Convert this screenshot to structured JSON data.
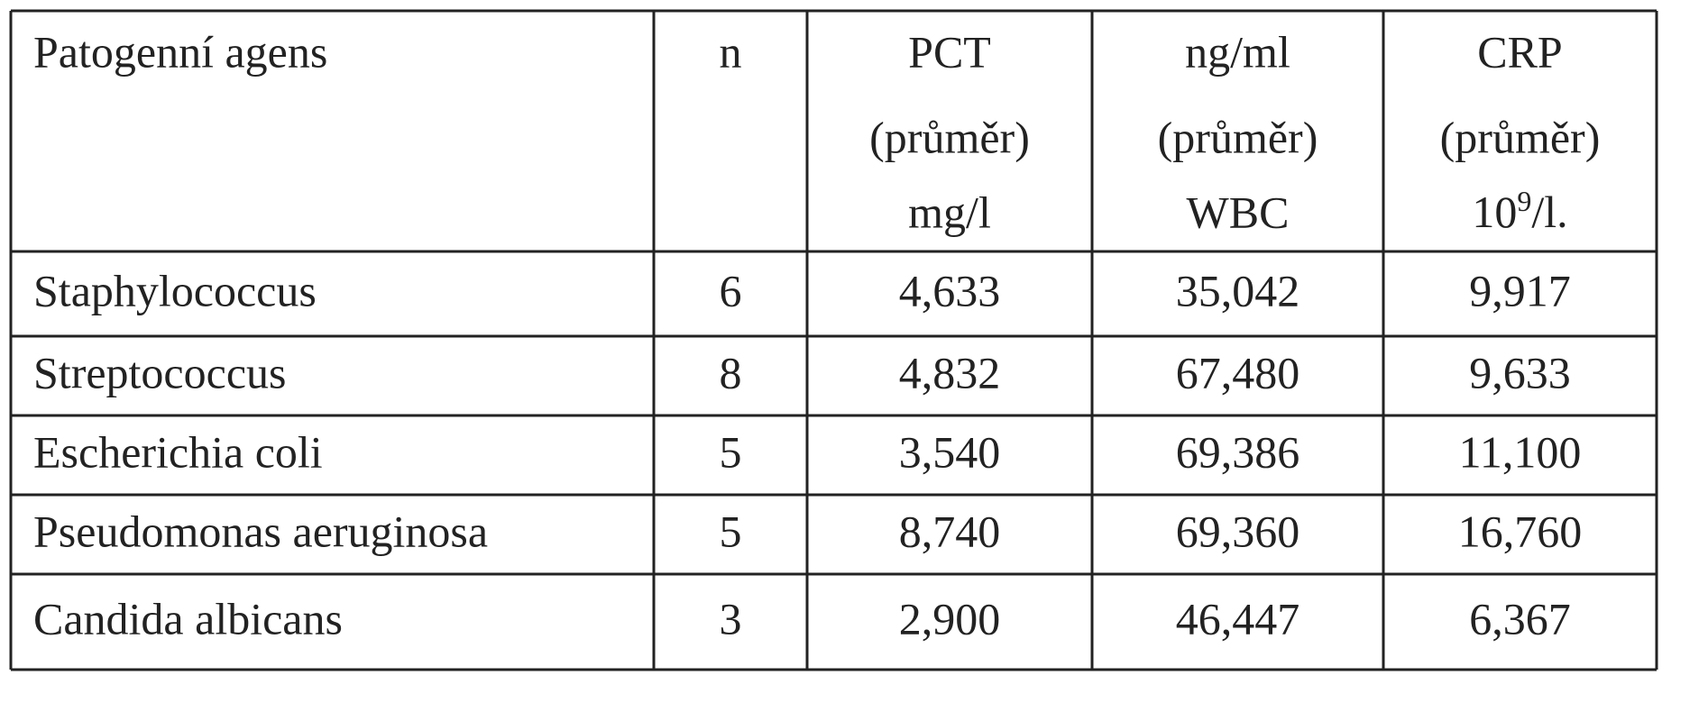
{
  "table": {
    "header": [
      {
        "lines": [
          "Patogenní agens"
        ]
      },
      {
        "lines": [
          "n"
        ]
      },
      {
        "lines": [
          "PCT",
          "(průměr)",
          "mg/l"
        ]
      },
      {
        "lines": [
          "ng/ml",
          "(průměr)",
          "WBC"
        ]
      },
      {
        "lines": [
          "CRP",
          "(průměr)"
        ],
        "unit": {
          "base": "10",
          "sup": "9",
          "tail": "/l."
        }
      }
    ],
    "rows": [
      [
        "Staphylococcus",
        "6",
        "4,633",
        "35,042",
        "9,917"
      ],
      [
        "Streptococcus",
        "8",
        "4,832",
        "67,480",
        "9,633"
      ],
      [
        "Escherichia coli",
        "5",
        "3,540",
        "69,386",
        "11,100"
      ],
      [
        "Pseudomonas aeruginosa",
        "5",
        "8,740",
        "69,360",
        "16,760"
      ],
      [
        "Candida albicans",
        "3",
        "2,900",
        "46,447",
        "6,367"
      ]
    ]
  }
}
